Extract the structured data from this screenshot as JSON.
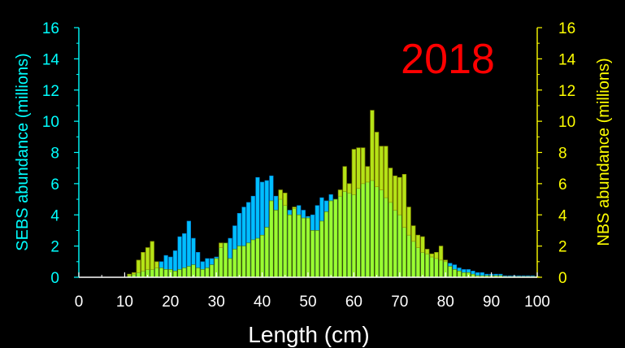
{
  "chart_data": {
    "type": "bar",
    "annotation": "2018",
    "xlabel": "Length (cm)",
    "ylabel_left": "SEBS abundance (millions)",
    "ylabel_right": "NBS abundance (millions)",
    "xlim": [
      0,
      100
    ],
    "ylim_left": [
      0,
      16
    ],
    "ylim_right": [
      0,
      16
    ],
    "x_ticks": [
      0,
      10,
      20,
      30,
      40,
      50,
      60,
      70,
      80,
      90,
      100
    ],
    "y_ticks": [
      0,
      2,
      4,
      6,
      8,
      10,
      12,
      14,
      16
    ],
    "grid": false,
    "colors": {
      "sebs": "#00BFFF",
      "nbs": "#CCCC00",
      "overlap": "#99FF33",
      "left_axis": "#00FFFF",
      "right_axis": "#FFFF00",
      "annotation": "#FF0000",
      "x_axis": "#FFFFFF",
      "background": "#000000"
    },
    "lengths": [
      11,
      12,
      13,
      14,
      15,
      16,
      17,
      18,
      19,
      20,
      21,
      22,
      23,
      24,
      25,
      26,
      27,
      28,
      29,
      30,
      31,
      32,
      33,
      34,
      35,
      36,
      37,
      38,
      39,
      40,
      41,
      42,
      43,
      44,
      45,
      46,
      47,
      48,
      49,
      50,
      51,
      52,
      53,
      54,
      55,
      56,
      57,
      58,
      59,
      60,
      61,
      62,
      63,
      64,
      65,
      66,
      67,
      68,
      69,
      70,
      71,
      72,
      73,
      74,
      75,
      76,
      77,
      78,
      79,
      80,
      81,
      82,
      83,
      84,
      85,
      86,
      87,
      88,
      89,
      90,
      91,
      92,
      93,
      94,
      95,
      96,
      97,
      98,
      99,
      100
    ],
    "series": [
      {
        "name": "SEBS",
        "axis": "left",
        "values": [
          0.1,
          0.2,
          0.3,
          0.4,
          0.5,
          0.5,
          0.6,
          1.0,
          1.4,
          1.3,
          1.7,
          2.6,
          2.8,
          3.6,
          2.5,
          1.6,
          1.0,
          1.2,
          1.2,
          1.3,
          1.9,
          2.2,
          2.5,
          3.3,
          4.1,
          4.5,
          4.8,
          5.2,
          6.4,
          6.1,
          6.2,
          6.5,
          5.2,
          5.0,
          4.6,
          4.3,
          4.4,
          4.6,
          4.3,
          3.9,
          4.0,
          4.6,
          5.1,
          4.9,
          5.3,
          5.0,
          5.2,
          5.5,
          5.4,
          5.3,
          5.7,
          6.0,
          6.1,
          6.2,
          5.8,
          5.6,
          5.1,
          4.8,
          4.3,
          4.0,
          3.2,
          2.7,
          2.3,
          1.9,
          1.6,
          1.5,
          1.3,
          1.2,
          1.1,
          1.0,
          0.9,
          0.8,
          0.6,
          0.5,
          0.5,
          0.4,
          0.3,
          0.3,
          0.2,
          0.2,
          0.2,
          0.2,
          0.1,
          0.1,
          0.1,
          0.1,
          0.1,
          0.1,
          0.1,
          0.05
        ]
      },
      {
        "name": "NBS",
        "axis": "right",
        "values": [
          0.2,
          0.3,
          1.1,
          1.6,
          1.9,
          2.3,
          1.0,
          0.6,
          0.5,
          0.5,
          0.4,
          0.5,
          0.6,
          0.7,
          0.8,
          0.6,
          0.5,
          0.6,
          0.8,
          1.2,
          2.2,
          2.2,
          1.2,
          1.8,
          2.0,
          2.0,
          2.2,
          2.4,
          2.5,
          2.7,
          3.2,
          4.9,
          4.3,
          5.6,
          5.4,
          4.0,
          4.5,
          4.0,
          3.8,
          3.8,
          3.0,
          3.0,
          3.6,
          4.2,
          4.9,
          5.0,
          5.6,
          7.1,
          6.0,
          8.2,
          8.3,
          8.3,
          7.1,
          10.7,
          9.3,
          8.4,
          8.4,
          7.0,
          6.5,
          6.4,
          6.6,
          4.5,
          3.3,
          2.7,
          2.6,
          1.8,
          1.5,
          1.6,
          2.0,
          1.1,
          0.7,
          0.5,
          0.4,
          0.3,
          0.3,
          0.2,
          0.1,
          0.1,
          0.1,
          0.1,
          0.1,
          0.1,
          0.05,
          0.05,
          0.05,
          0.05,
          0.05,
          0.05,
          0.05,
          0.05
        ]
      }
    ]
  }
}
